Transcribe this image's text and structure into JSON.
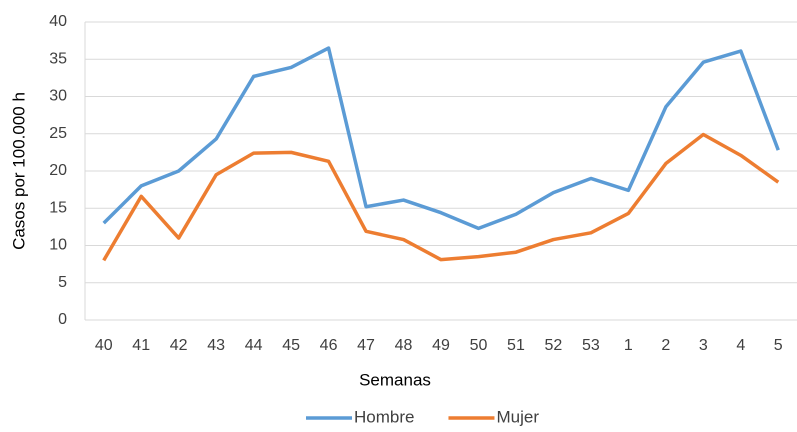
{
  "chart_data": {
    "type": "line",
    "x_label": "Semanas",
    "y_label": "Casos por 100.000 h",
    "categories": [
      "40",
      "41",
      "42",
      "43",
      "44",
      "45",
      "46",
      "47",
      "48",
      "49",
      "50",
      "51",
      "52",
      "53",
      "1",
      "2",
      "3",
      "4",
      "5"
    ],
    "series": [
      {
        "name": "Hombre",
        "color": "#5b9bd5",
        "values": [
          13,
          18,
          20,
          24.3,
          32.7,
          33.9,
          36.5,
          15.2,
          16.1,
          14.4,
          12.3,
          14.2,
          17.1,
          19,
          17.4,
          28.6,
          34.6,
          36.1,
          22.8
        ]
      },
      {
        "name": "Mujer",
        "color": "#ed7d31",
        "values": [
          8,
          16.6,
          11,
          19.5,
          22.4,
          22.5,
          21.3,
          11.9,
          10.8,
          8.1,
          8.5,
          9.1,
          10.8,
          11.7,
          14.3,
          21,
          24.9,
          22.1,
          18.5
        ]
      }
    ],
    "ylim": [
      0,
      40
    ],
    "yticks": [
      0,
      5,
      10,
      15,
      20,
      25,
      30,
      35,
      40
    ],
    "grid": true,
    "legend": "bottom"
  }
}
